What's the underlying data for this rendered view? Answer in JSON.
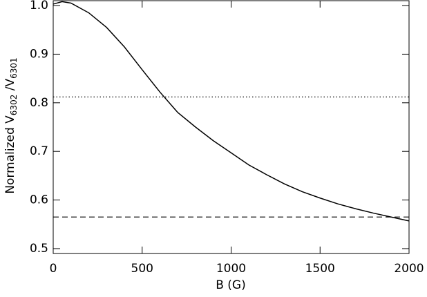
{
  "chart_data": {
    "type": "line",
    "xlabel": "B (G)",
    "ylabel_parts": [
      "Normalized V",
      "6302",
      " /V",
      "6301"
    ],
    "x": [
      0,
      50,
      100,
      200,
      300,
      400,
      500,
      600,
      700,
      800,
      900,
      1000,
      1100,
      1200,
      1300,
      1400,
      1500,
      1600,
      1700,
      1800,
      1900,
      2000
    ],
    "series": [
      {
        "color": "#000000",
        "values": [
          1.003,
          1.008,
          1.005,
          0.985,
          0.955,
          0.915,
          0.868,
          0.822,
          0.78,
          0.75,
          0.722,
          0.697,
          0.672,
          0.652,
          0.633,
          0.617,
          0.604,
          0.592,
          0.582,
          0.573,
          0.565,
          0.557
        ]
      }
    ],
    "hlines": [
      {
        "value": 0.812,
        "style": "dotted"
      },
      {
        "value": 0.565,
        "style": "dashed"
      }
    ],
    "xlim": [
      0,
      2000
    ],
    "xticks": [
      0,
      500,
      1000,
      1500,
      2000
    ],
    "ylim": [
      0.49,
      1.01
    ],
    "yticks": [
      0.5,
      0.6,
      0.7,
      0.8,
      0.9,
      {
        "value": 1.0,
        "label": "1.0"
      }
    ]
  }
}
